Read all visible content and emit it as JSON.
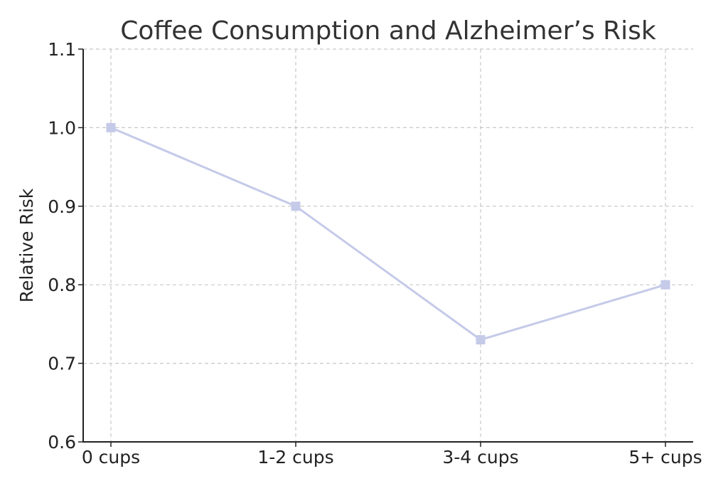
{
  "chart_data": {
    "type": "line",
    "title": "Coffee Consumption and Alzheimer’s Risk",
    "xlabel": "",
    "ylabel": "Relative Risk",
    "categories": [
      "0 cups",
      "1-2 cups",
      "3-4 cups",
      "5+ cups"
    ],
    "series": [
      {
        "values": [
          1.0,
          0.9,
          0.73,
          0.8
        ]
      }
    ],
    "ylim": [
      0.6,
      1.1
    ],
    "yticks": [
      0.6,
      0.7,
      0.8,
      0.9,
      1.0,
      1.1
    ],
    "ytick_labels": [
      "0.6",
      "0.7",
      "0.8",
      "0.9",
      "1.0",
      "1.1"
    ],
    "grid": true,
    "marker": "square",
    "line_color": "#c5cae9"
  }
}
